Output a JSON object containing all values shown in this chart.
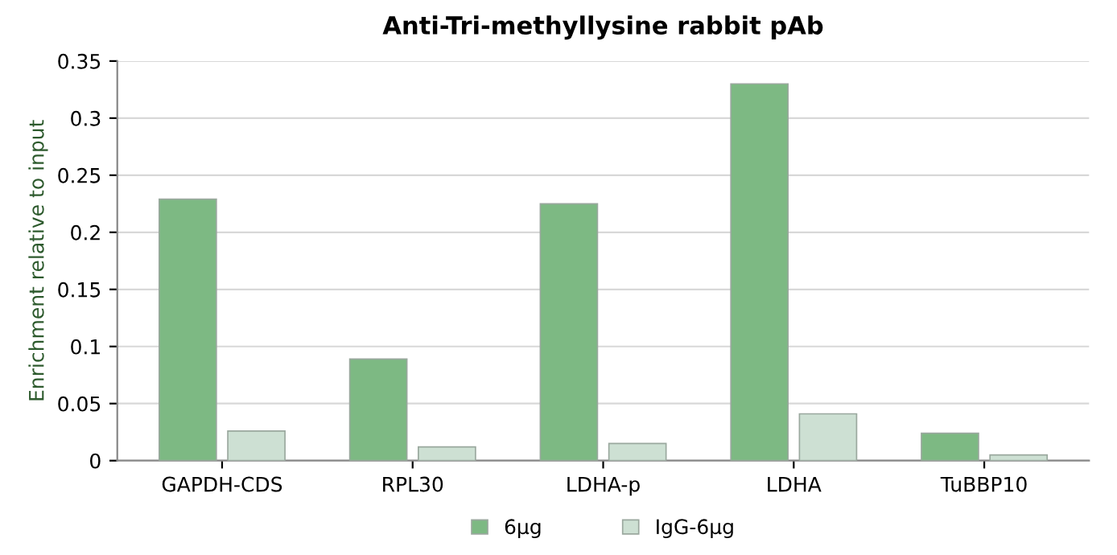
{
  "chart_data": {
    "type": "bar",
    "title": "Anti-Tri-methyllysine rabbit pAb",
    "ylabel": "Enrichment relative to input",
    "categories": [
      "GAPDH-CDS",
      "RPL30",
      "LDHA-p",
      "LDHA",
      "TuBBP10"
    ],
    "series": [
      {
        "name": "6μg",
        "color": "#7db983",
        "values": [
          0.229,
          0.089,
          0.225,
          0.33,
          0.024
        ]
      },
      {
        "name": "IgG-6μg",
        "color": "#cde0d3",
        "values": [
          0.026,
          0.012,
          0.015,
          0.041,
          0.005
        ]
      }
    ],
    "ylim": [
      0,
      0.35
    ],
    "yticks": [
      0,
      0.05,
      0.1,
      0.15,
      0.2,
      0.25,
      0.3,
      0.35
    ],
    "grid": "y",
    "legend": "bottom"
  }
}
